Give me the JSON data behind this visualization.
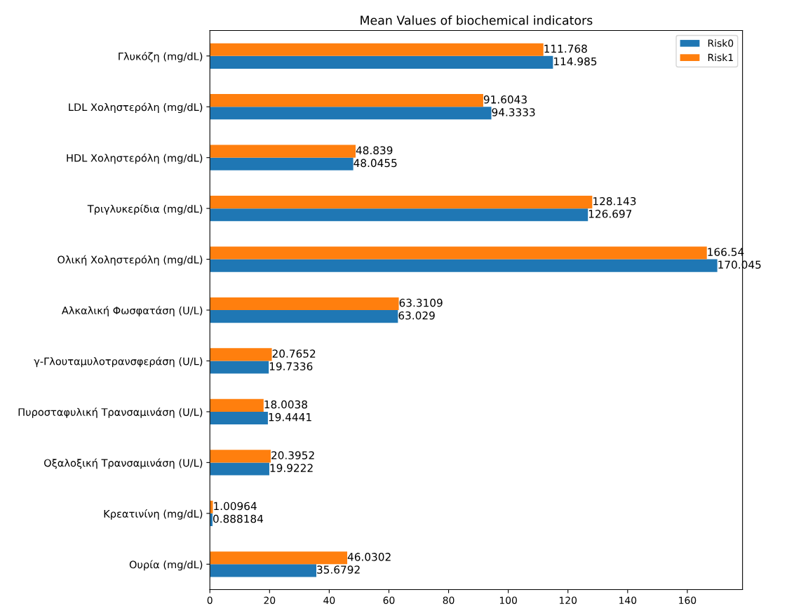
{
  "chart_data": {
    "type": "bar",
    "orientation": "horizontal",
    "title": "Mean Values of biochemical indicators",
    "categories": [
      "Γλυκόζη (mg/dL)",
      "LDL Χοληστερόλη (mg/dL)",
      "HDL Χοληστερόλη (mg/dL)",
      "Τριγλυκερίδια (mg/dL)",
      "Ολική Χοληστερόλη (mg/dL)",
      "Αλκαλική Φωσφατάση (U/L)",
      "γ-Γλουταμυλοτρανσφεράση (U/L)",
      "Πυροσταφυλική Τρανσαμινάση (U/L)",
      "Οξαλοξική Τρανσαμινάση (U/L)",
      "Κρεατινίνη (mg/dL)",
      "Ουρία (mg/dL)"
    ],
    "series": [
      {
        "name": "Risk0",
        "color": "#1f77b4",
        "values": [
          114.985,
          94.3333,
          48.0455,
          126.697,
          170.045,
          63.029,
          19.7336,
          19.4441,
          19.9222,
          0.888184,
          35.6792
        ]
      },
      {
        "name": "Risk1",
        "color": "#ff7f0e",
        "values": [
          111.768,
          91.6043,
          48.839,
          128.143,
          166.54,
          63.3109,
          20.7652,
          18.0038,
          20.3952,
          1.00964,
          46.0302
        ]
      }
    ],
    "xlim": [
      0,
      178.5
    ],
    "xticks": [
      0,
      20,
      40,
      60,
      80,
      100,
      120,
      140,
      160
    ],
    "data_labels": true,
    "legend": "top right",
    "grid": false
  }
}
